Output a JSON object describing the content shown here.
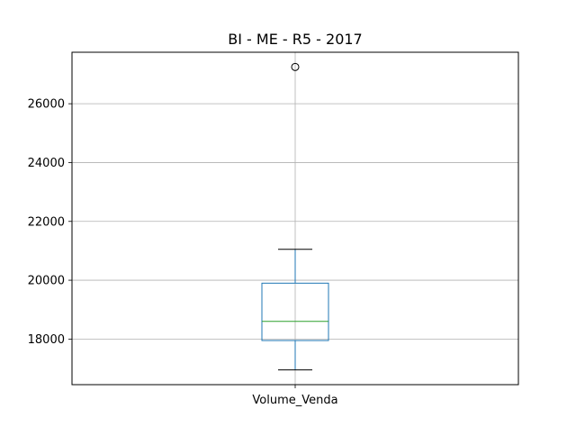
{
  "chart_data": {
    "type": "box",
    "title": "BI - ME - R5 - 2017",
    "xlabel": "",
    "ylabel": "",
    "categories": [
      "Volume_Venda"
    ],
    "series": [
      {
        "values": [
          {
            "whisker_low": 16950,
            "q1": 17950,
            "median": 18600,
            "q3": 19900,
            "whisker_high": 21050,
            "outliers": [
              27250
            ]
          }
        ]
      }
    ],
    "ylim": [
      16450,
      27750
    ],
    "yticks": [
      18000,
      20000,
      22000,
      24000,
      26000
    ],
    "grid": true,
    "colors": {
      "box": "#1f77b4",
      "median": "#2ca02c",
      "whisker": "#1f77b4",
      "cap": "#000000",
      "outlier": "#000000",
      "grid": "#b0b0b0",
      "axes": "#000000"
    }
  }
}
